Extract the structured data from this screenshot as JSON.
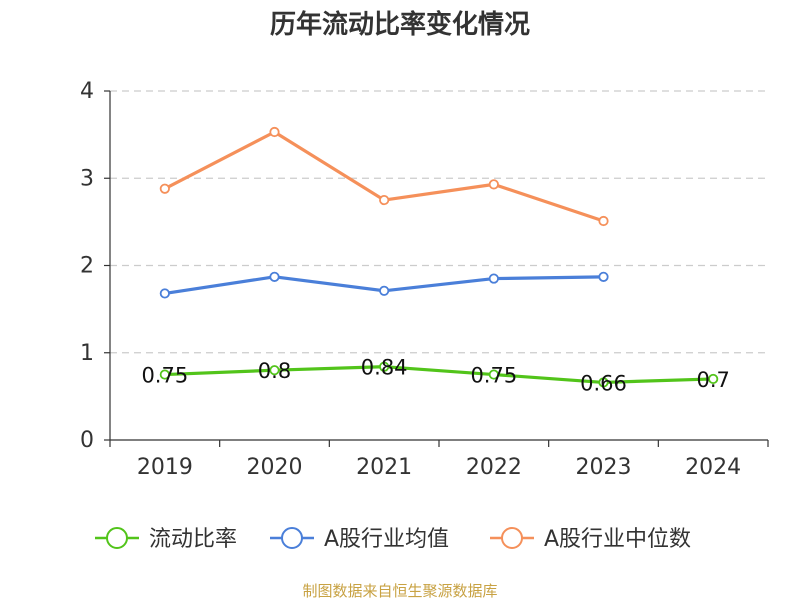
{
  "chart_data": {
    "type": "line",
    "title": "历年流动比率变化情况",
    "categories": [
      "2019",
      "2020",
      "2021",
      "2022",
      "2023",
      "2024"
    ],
    "y_ticks": [
      "0",
      "1",
      "2",
      "3",
      "4"
    ],
    "ylim": [
      0,
      4
    ],
    "grid": true,
    "legend_position": "bottom",
    "series": [
      {
        "name": "流动比率",
        "color": "#52c41a",
        "values": [
          0.75,
          0.8,
          0.84,
          0.75,
          0.66,
          0.7
        ],
        "labels": [
          "0.75",
          "0.8",
          "0.84",
          "0.75",
          "0.66",
          "0.7"
        ]
      },
      {
        "name": "A股行业均值",
        "color": "#4a7fd9",
        "values": [
          1.68,
          1.87,
          1.71,
          1.85,
          1.87,
          null
        ]
      },
      {
        "name": "A股行业中位数",
        "color": "#f5905a",
        "values": [
          2.88,
          3.53,
          2.75,
          2.93,
          2.51,
          null
        ]
      }
    ]
  },
  "source": "制图数据来自恒生聚源数据库"
}
